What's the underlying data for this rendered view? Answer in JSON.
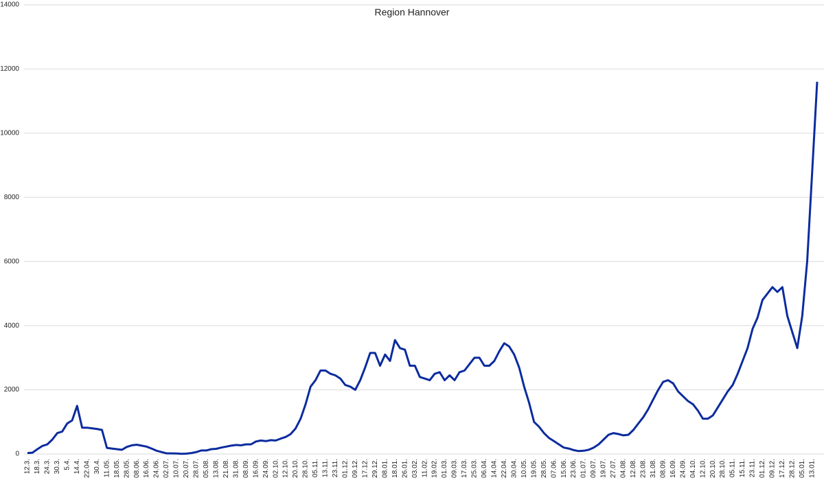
{
  "chart_data": {
    "type": "line",
    "title": "Region Hannover",
    "color": "#0b2b9e",
    "grid": true,
    "ylim": [
      0,
      14000
    ],
    "yticks": [
      0,
      2000,
      4000,
      6000,
      8000,
      10000,
      12000,
      14000
    ],
    "categories": [
      "12.3.",
      null,
      "18.3.",
      null,
      "24.3.",
      null,
      "30.3.",
      null,
      "5.4.",
      null,
      "14.4.",
      null,
      "22.04.",
      null,
      "30.4.",
      null,
      "11.05.",
      null,
      "18.05.",
      null,
      "28.05.",
      null,
      "08.06.",
      null,
      "16.06.",
      null,
      "24.06.",
      null,
      "02.07.",
      null,
      "10.07.",
      null,
      "20.07.",
      null,
      "28.07.",
      null,
      "05.08.",
      null,
      "13.08.",
      null,
      "21.08.",
      null,
      "31.08.",
      null,
      "08.09.",
      null,
      "16.09.",
      null,
      "24.09.",
      null,
      "02.10.",
      null,
      "12.10.",
      null,
      "20.10.",
      null,
      "28.10.",
      null,
      "05.11.",
      null,
      "13.11.",
      null,
      "23.11.",
      null,
      "01.12.",
      null,
      "09.12.",
      null,
      "17.12.",
      null,
      "29.12.",
      null,
      "08.01.",
      null,
      "18.01.",
      null,
      "26.01.",
      null,
      "03.02.",
      null,
      "11.02.",
      null,
      "19.02.",
      null,
      "01.03.",
      null,
      "09.03.",
      null,
      "17.03.",
      null,
      "25.03.",
      null,
      "06.04.",
      null,
      "14.04.",
      null,
      "22.04.",
      null,
      "30.04.",
      null,
      "10.05.",
      null,
      "19.05.",
      null,
      "28.05.",
      null,
      "07.06.",
      null,
      "15.06.",
      null,
      "23.06.",
      null,
      "01.07.",
      null,
      "09.07.",
      null,
      "19.07.",
      null,
      "27.07.",
      null,
      "04.08.",
      null,
      "12.08.",
      null,
      "23.08.",
      null,
      "31.08.",
      null,
      "08.09.",
      null,
      "16.09.",
      null,
      "24.09.",
      null,
      "04.10.",
      null,
      "12.10.",
      null,
      "20.10.",
      null,
      "28.10.",
      null,
      "05.11.",
      null,
      "15.11.",
      null,
      "23.11.",
      null,
      "01.12.",
      null,
      "09.12.",
      null,
      "17.12.",
      null,
      "28.12.",
      null,
      "05.01.",
      null,
      "13.01.",
      null
    ],
    "values": [
      30,
      40,
      150,
      250,
      300,
      450,
      650,
      700,
      950,
      1050,
      1500,
      820,
      820,
      800,
      780,
      750,
      190,
      170,
      150,
      130,
      220,
      270,
      290,
      260,
      230,
      170,
      100,
      60,
      20,
      20,
      15,
      5,
      10,
      30,
      60,
      110,
      110,
      150,
      160,
      200,
      230,
      260,
      280,
      270,
      300,
      300,
      390,
      420,
      400,
      430,
      420,
      480,
      530,
      620,
      800,
      1100,
      1550,
      2100,
      2300,
      2600,
      2600,
      2500,
      2450,
      2350,
      2150,
      2100,
      2000,
      2300,
      2700,
      3150,
      3150,
      2750,
      3100,
      2900,
      3550,
      3300,
      3250,
      2750,
      2750,
      2400,
      2350,
      2300,
      2500,
      2550,
      2300,
      2450,
      2300,
      2550,
      2600,
      2800,
      3000,
      3000,
      2750,
      2750,
      2900,
      3200,
      3450,
      3350,
      3100,
      2700,
      2100,
      1600,
      1000,
      850,
      650,
      500,
      400,
      300,
      200,
      170,
      120,
      90,
      100,
      130,
      200,
      300,
      450,
      600,
      650,
      620,
      580,
      600,
      750,
      950,
      1150,
      1400,
      1700,
      2000,
      2250,
      2300,
      2200,
      1950,
      1800,
      1650,
      1550,
      1350,
      1100,
      1100,
      1200,
      1450,
      1700,
      1950,
      2150,
      2500,
      2900,
      3300,
      3900,
      4250,
      4800,
      5000,
      5200,
      5050,
      5200,
      4300,
      3800,
      3300,
      4300,
      6000,
      8800,
      11600
    ]
  }
}
